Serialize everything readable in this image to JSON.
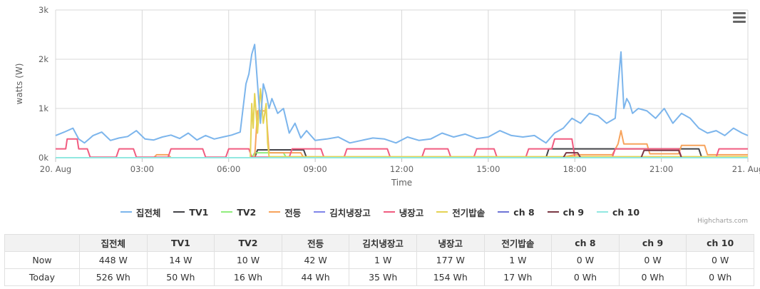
{
  "menu": {
    "icon": "hamburger-menu-icon"
  },
  "credits": "Highcharts.com",
  "chart_data": {
    "type": "line",
    "xlabel": "Time",
    "ylabel": "watts (W)",
    "ylim": [
      0,
      3000
    ],
    "yticks": [
      0,
      1000,
      2000,
      3000
    ],
    "yticklabels": [
      "0k",
      "1k",
      "2k",
      "3k"
    ],
    "xlim": [
      0,
      24
    ],
    "xticks": [
      0,
      3,
      6,
      9,
      12,
      15,
      18,
      21,
      24
    ],
    "xticklabels": [
      "20. Aug",
      "03:00",
      "06:00",
      "09:00",
      "12:00",
      "15:00",
      "18:00",
      "21:00",
      "21. Aug"
    ],
    "grid": true,
    "legend_position": "bottom",
    "series": [
      {
        "name": "집전체",
        "color": "#7cb5ec",
        "x": [
          0,
          0.3,
          0.6,
          0.8,
          1,
          1.3,
          1.6,
          1.9,
          2.2,
          2.5,
          2.8,
          3.1,
          3.4,
          3.7,
          4,
          4.3,
          4.6,
          4.9,
          5.2,
          5.5,
          5.8,
          6.1,
          6.4,
          6.6,
          6.7,
          6.8,
          6.9,
          7,
          7.1,
          7.2,
          7.3,
          7.4,
          7.5,
          7.7,
          7.9,
          8.1,
          8.3,
          8.5,
          8.7,
          9,
          9.4,
          9.8,
          10.2,
          10.6,
          11,
          11.4,
          11.8,
          12.2,
          12.6,
          13,
          13.4,
          13.8,
          14.2,
          14.6,
          15,
          15.4,
          15.8,
          16.2,
          16.6,
          17,
          17.3,
          17.6,
          17.9,
          18.2,
          18.5,
          18.8,
          19.1,
          19.4,
          19.6,
          19.7,
          19.8,
          19.9,
          20,
          20.2,
          20.5,
          20.8,
          21.1,
          21.4,
          21.7,
          22,
          22.3,
          22.6,
          22.9,
          23.2,
          23.5,
          23.8,
          24
        ],
        "y": [
          450,
          520,
          600,
          380,
          300,
          450,
          520,
          350,
          400,
          430,
          550,
          380,
          360,
          420,
          460,
          390,
          500,
          360,
          450,
          380,
          420,
          460,
          520,
          1500,
          1700,
          2100,
          2300,
          1500,
          700,
          1500,
          1300,
          1000,
          1200,
          900,
          1000,
          500,
          700,
          400,
          550,
          350,
          380,
          420,
          300,
          350,
          400,
          380,
          300,
          420,
          350,
          380,
          500,
          420,
          480,
          390,
          420,
          550,
          450,
          420,
          450,
          300,
          500,
          600,
          800,
          700,
          900,
          850,
          700,
          800,
          2150,
          1000,
          1200,
          1100,
          900,
          1000,
          950,
          800,
          1000,
          700,
          900,
          800,
          600,
          500,
          550,
          450,
          600,
          500,
          450
        ]
      },
      {
        "name": "TV1",
        "color": "#434348",
        "x": [
          0,
          6.9,
          7,
          8.6,
          8.7,
          17,
          17.1,
          22.3,
          22.4,
          24
        ],
        "y": [
          0,
          0,
          160,
          160,
          0,
          0,
          180,
          180,
          0,
          0
        ]
      },
      {
        "name": "TV2",
        "color": "#90ed7d",
        "x": [
          0,
          6.8,
          6.9,
          7.9,
          8,
          24
        ],
        "y": [
          0,
          0,
          100,
          100,
          0,
          0
        ]
      },
      {
        "name": "전등",
        "color": "#f7a35c",
        "x": [
          0,
          3.4,
          3.5,
          3.9,
          4,
          6.9,
          7,
          7.3,
          7.4,
          8.5,
          8.6,
          17.5,
          18,
          19.3,
          19.5,
          19.6,
          19.7,
          20.5,
          20.6,
          21.6,
          21.7,
          22.5,
          22.6,
          24
        ],
        "y": [
          0,
          0,
          60,
          60,
          0,
          0,
          950,
          950,
          100,
          100,
          0,
          0,
          60,
          60,
          280,
          550,
          280,
          280,
          80,
          80,
          250,
          250,
          60,
          60
        ]
      },
      {
        "name": "김치냉장고",
        "color": "#8085e9",
        "x": [
          0,
          24
        ],
        "y": [
          0,
          0
        ]
      },
      {
        "name": "냉장고",
        "color": "#f15c80",
        "x": [
          0,
          0.35,
          0.4,
          0.75,
          0.8,
          1.1,
          1.2,
          2.1,
          2.2,
          2.7,
          2.8,
          3.9,
          4,
          5.1,
          5.2,
          5.9,
          6,
          6.7,
          6.8,
          8.1,
          8.2,
          9.2,
          9.3,
          10,
          10.1,
          11.5,
          11.6,
          12.7,
          12.8,
          13.6,
          13.7,
          14.5,
          14.6,
          15.2,
          15.3,
          16.3,
          16.4,
          17.2,
          17.3,
          17.9,
          18,
          19.3,
          19.4,
          21.6,
          21.7,
          22.9,
          23,
          24
        ],
        "y": [
          180,
          180,
          380,
          380,
          180,
          180,
          10,
          10,
          180,
          180,
          10,
          10,
          180,
          180,
          10,
          10,
          180,
          180,
          10,
          10,
          180,
          180,
          10,
          10,
          180,
          180,
          10,
          10,
          180,
          180,
          10,
          10,
          180,
          180,
          10,
          10,
          180,
          180,
          380,
          380,
          10,
          10,
          180,
          180,
          10,
          10,
          180,
          180
        ]
      },
      {
        "name": "전기밥솥",
        "color": "#e4d354",
        "x": [
          0,
          6.75,
          6.8,
          6.85,
          6.9,
          7,
          7.1,
          7.2,
          7.3,
          7.35,
          7.4,
          24
        ],
        "y": [
          0,
          0,
          1100,
          600,
          1300,
          500,
          1400,
          700,
          1100,
          300,
          20,
          20
        ]
      },
      {
        "name": "ch 8",
        "color": "#6e74d6",
        "x": [
          0,
          24
        ],
        "y": [
          0,
          0
        ]
      },
      {
        "name": "ch 9",
        "color": "#7a3845",
        "x": [
          0,
          17.6,
          17.7,
          18.1,
          18.2,
          20.3,
          20.4,
          21.6,
          21.7,
          24
        ],
        "y": [
          0,
          0,
          100,
          100,
          0,
          0,
          150,
          150,
          0,
          0
        ]
      },
      {
        "name": "ch 10",
        "color": "#91e8e1",
        "x": [
          0,
          24
        ],
        "y": [
          0,
          0
        ]
      }
    ]
  },
  "table": {
    "headers": [
      "",
      "집전체",
      "TV1",
      "TV2",
      "전등",
      "김치냉장고",
      "냉장고",
      "전기밥솥",
      "ch 8",
      "ch 9",
      "ch 10"
    ],
    "rows": [
      [
        "Now",
        "448 W",
        "14 W",
        "10 W",
        "42 W",
        "1 W",
        "177 W",
        "1 W",
        "0 W",
        "0 W",
        "0 W"
      ],
      [
        "Today",
        "526 Wh",
        "50 Wh",
        "16 Wh",
        "44 Wh",
        "35 Wh",
        "154 Wh",
        "17 Wh",
        "0 Wh",
        "0 Wh",
        "0 Wh"
      ]
    ]
  }
}
